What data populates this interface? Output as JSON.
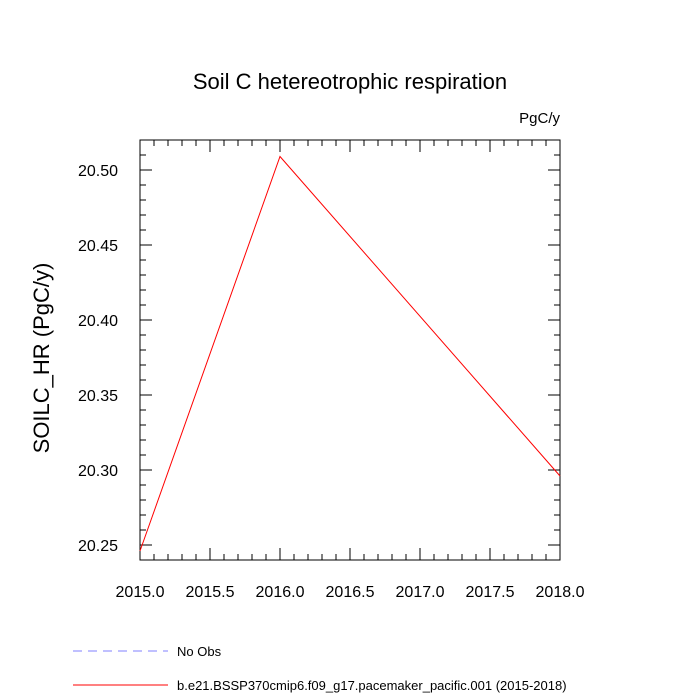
{
  "chart_data": {
    "type": "line",
    "title": "Soil C hetereotrophic respiration",
    "units_label": "PgC/y",
    "ylabel": "SOILC_HR  (PgC/y)",
    "xlabel": "",
    "xlim": [
      2015.0,
      2018.0
    ],
    "ylim": [
      20.24,
      20.52
    ],
    "x_ticks": [
      2015.0,
      2015.5,
      2016.0,
      2016.5,
      2017.0,
      2017.5,
      2018.0
    ],
    "x_tick_labels": [
      "2015.0",
      "2015.5",
      "2016.0",
      "2016.5",
      "2017.0",
      "2017.5",
      "2018.0"
    ],
    "y_ticks": [
      20.25,
      20.3,
      20.35,
      20.4,
      20.45,
      20.5
    ],
    "y_tick_labels": [
      "20.25",
      "20.30",
      "20.35",
      "20.40",
      "20.45",
      "20.50"
    ],
    "grid": false,
    "legend_position": "bottom",
    "series": [
      {
        "name": "b.e21.BSSP370cmip6.f09_g17.pacemaker_pacific.001 (2015-2018)",
        "color": "#ff0000",
        "dash": "solid",
        "x": [
          2015.0,
          2016.0,
          2018.0
        ],
        "y": [
          20.246,
          20.509,
          20.296
        ]
      }
    ],
    "legend": [
      {
        "label": "No Obs",
        "color": "#8080ff",
        "dash": "dashed"
      },
      {
        "label": "b.e21.BSSP370cmip6.f09_g17.pacemaker_pacific.001 (2015-2018)",
        "color": "#ff0000",
        "dash": "solid"
      }
    ]
  }
}
